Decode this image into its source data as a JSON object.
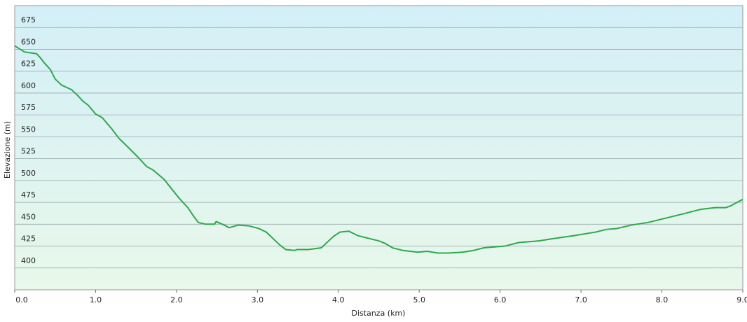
{
  "chart_data": {
    "type": "line",
    "x_label": "Distanza  (km)",
    "y_label": "Elevazione (m)",
    "xlim": [
      0,
      9
    ],
    "ylim": [
      375,
      700
    ],
    "xticks": [
      {
        "value": 0,
        "label": "0.0"
      },
      {
        "value": 1,
        "label": "1.0"
      },
      {
        "value": 2,
        "label": "2.0"
      },
      {
        "value": 3,
        "label": "3.0"
      },
      {
        "value": 4,
        "label": "4.0"
      },
      {
        "value": 5,
        "label": "5.0"
      },
      {
        "value": 6,
        "label": "6.0"
      },
      {
        "value": 7,
        "label": "7.0"
      },
      {
        "value": 8,
        "label": "8.0"
      },
      {
        "value": 9,
        "label": "9.0"
      }
    ],
    "yticks": [
      400,
      425,
      450,
      475,
      500,
      525,
      550,
      575,
      600,
      625,
      650,
      675
    ],
    "grid": true,
    "x": [
      0,
      0.12,
      0.27,
      0.32,
      0.37,
      0.44,
      0.5,
      0.58,
      0.7,
      0.77,
      0.84,
      0.91,
      1.0,
      1.08,
      1.2,
      1.29,
      1.38,
      1.51,
      1.63,
      1.71,
      1.85,
      1.9,
      2.03,
      2.14,
      2.22,
      2.27,
      2.36,
      2.47,
      2.49,
      2.59,
      2.65,
      2.76,
      2.9,
      3.02,
      3.11,
      3.2,
      3.28,
      3.35,
      3.46,
      3.49,
      3.63,
      3.79,
      3.87,
      3.94,
      4.02,
      4.13,
      4.24,
      4.41,
      4.5,
      4.58,
      4.67,
      4.8,
      4.98,
      5.1,
      5.23,
      5.36,
      5.54,
      5.67,
      5.8,
      6.06,
      6.23,
      6.49,
      6.62,
      6.92,
      7.18,
      7.31,
      7.44,
      7.62,
      7.83,
      8.05,
      8.27,
      8.48,
      8.66,
      8.79,
      8.85,
      8.99,
      9.0
    ],
    "series": [
      {
        "color": "#2ea84a",
        "values": [
          654,
          647,
          645,
          640,
          634,
          627,
          616,
          609,
          604,
          598,
          591,
          586,
          576,
          572,
          559,
          548,
          540,
          528,
          516,
          512,
          501,
          495,
          480,
          469,
          458,
          452,
          450,
          450,
          453,
          449,
          446,
          449,
          448,
          445,
          441,
          433,
          426,
          421,
          420,
          421,
          421,
          423,
          430,
          436,
          441,
          442,
          437,
          433,
          431,
          428,
          423,
          420,
          418,
          419,
          417,
          417,
          418,
          420,
          423,
          425,
          429,
          431,
          433,
          437,
          441,
          444,
          445,
          449,
          452,
          457,
          462,
          467,
          469,
          469,
          471,
          478,
          478
        ]
      }
    ]
  }
}
